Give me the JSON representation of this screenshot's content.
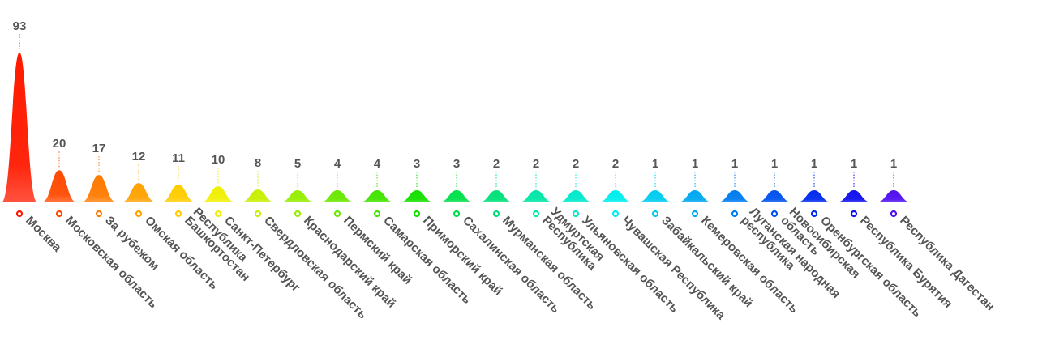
{
  "chart_data": {
    "type": "bar",
    "title": "",
    "xlabel": "",
    "ylabel": "",
    "ylim": [
      0,
      93
    ],
    "grid": false,
    "legend": "none",
    "categories": [
      "Москва",
      "Московская область",
      "За рубежом",
      "Омская область",
      "Республика Башкортостан",
      "Санкт-Петербург",
      "Свердловская область",
      "Краснодарский край",
      "Пермский край",
      "Самарская область",
      "Приморский край",
      "Сахалинская область",
      "Мурманская область",
      "Удмуртская Республика",
      "Ульяновская область",
      "Чувашская Республика",
      "Забайкальский край",
      "Кемеровская область",
      "Луганская народная республика",
      "Новосибирская область",
      "Оренбургская область",
      "Республика Бурятия",
      "Республика Дагестан"
    ],
    "label_lines": [
      [
        "Москва"
      ],
      [
        "Московская область"
      ],
      [
        "За рубежом"
      ],
      [
        "Омская область"
      ],
      [
        "Республика",
        "Башкортостан"
      ],
      [
        "Санкт-Петербург"
      ],
      [
        "Свердловская область"
      ],
      [
        "Краснодарский край"
      ],
      [
        "Пермский край"
      ],
      [
        "Самарская область"
      ],
      [
        "Приморский край"
      ],
      [
        "Сахалинская область"
      ],
      [
        "Мурманская область"
      ],
      [
        "Удмуртская",
        "Республика"
      ],
      [
        "Ульяновская область"
      ],
      [
        "Чувашская Республика"
      ],
      [
        "Забайкальский край"
      ],
      [
        "Кемеровская область"
      ],
      [
        "Луганская народная",
        "республика"
      ],
      [
        "Новосибирская",
        "область"
      ],
      [
        "Оренбургская область"
      ],
      [
        "Республика Бурятия"
      ],
      [
        "Республика Дагестан"
      ]
    ],
    "values": [
      93,
      20,
      17,
      12,
      11,
      10,
      8,
      5,
      4,
      4,
      3,
      3,
      2,
      2,
      2,
      2,
      1,
      1,
      1,
      1,
      1,
      1,
      1
    ],
    "colors": [
      "#ff1a00",
      "#ff4a00",
      "#ff7a00",
      "#ffa200",
      "#ffcc00",
      "#f0f000",
      "#c6f000",
      "#96ee00",
      "#6ae800",
      "#42e400",
      "#14e000",
      "#00e04a",
      "#00e07a",
      "#00e6a6",
      "#00eacc",
      "#00eeee",
      "#00ccf0",
      "#00a8f0",
      "#007cf0",
      "#0052ee",
      "#002aee",
      "#1010ee",
      "#5010f0"
    ]
  }
}
